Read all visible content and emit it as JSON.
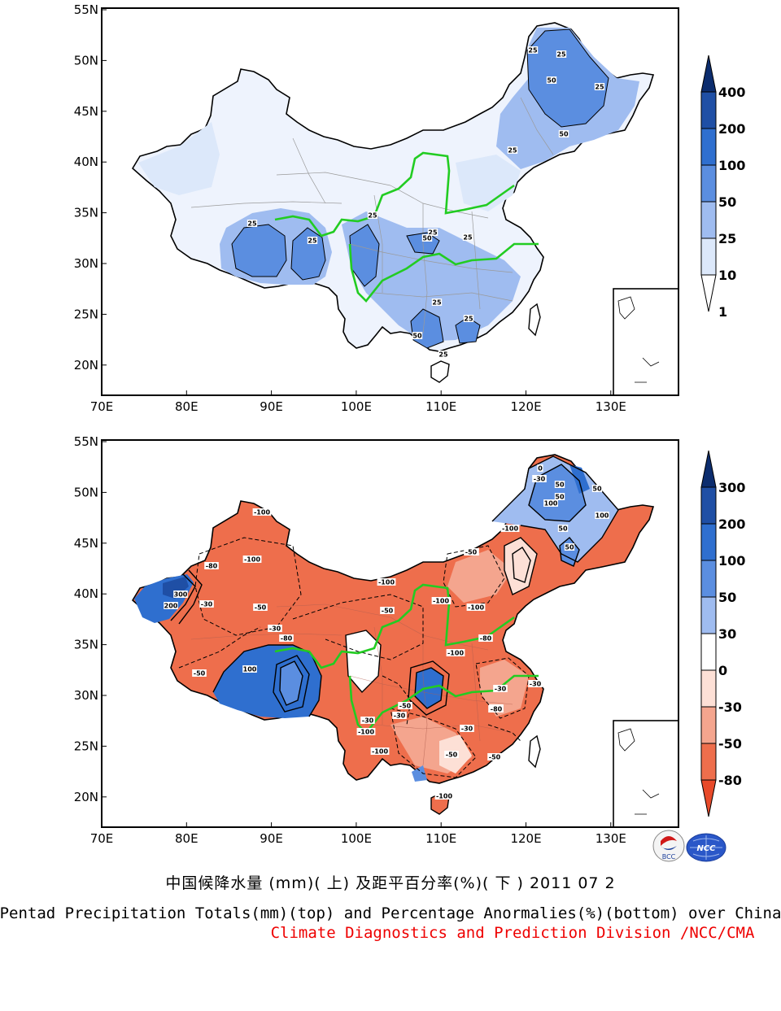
{
  "maps": [
    {
      "id": "top",
      "title": "Pentad precipitation totals (mm)",
      "lon_ticks": [
        "70E",
        "80E",
        "90E",
        "100E",
        "110E",
        "120E",
        "130E"
      ],
      "lat_ticks": [
        "55N",
        "50N",
        "45N",
        "40N",
        "35N",
        "30N",
        "25N",
        "20N"
      ],
      "colorbar_labels": [
        "400",
        "200",
        "100",
        "50",
        "25",
        "10",
        "1"
      ],
      "colorbar_colors": [
        "#0c2d6e",
        "#1f4fa5",
        "#2f6fcf",
        "#5b8ee0",
        "#9fbcf0",
        "#dce8fa",
        "#ffffff"
      ],
      "contour_labels": [
        "25",
        "25",
        "50",
        "25",
        "50",
        "25",
        "25",
        "25",
        "25",
        "25",
        "50",
        "25",
        "25",
        "25",
        "50",
        "25"
      ]
    },
    {
      "id": "bottom",
      "title": "Percentage anomalies (%)",
      "lon_ticks": [
        "70E",
        "80E",
        "90E",
        "100E",
        "110E",
        "120E",
        "130E"
      ],
      "lat_ticks": [
        "55N",
        "50N",
        "45N",
        "40N",
        "35N",
        "30N",
        "25N",
        "20N"
      ],
      "colorbar_labels": [
        "300",
        "200",
        "100",
        "50",
        "30",
        "0",
        "-30",
        "-50",
        "-80"
      ],
      "colorbar_colors": [
        "#0c2d6e",
        "#1f4fa5",
        "#2f6fcf",
        "#5b8ee0",
        "#9fbcf0",
        "#ffffff",
        "#fde0d6",
        "#f4a58e",
        "#ee6e4c",
        "#e84a2a"
      ],
      "contour_labels": [
        "-100",
        "-100",
        "-100",
        "-80",
        "300",
        "200",
        "-30",
        "-50",
        "-100",
        "-50",
        "100",
        "-30",
        "-50",
        "-80",
        "-50",
        "-100",
        "-100",
        "-100",
        "-50",
        "-30",
        "-100",
        "-50",
        "0",
        "-30",
        "50",
        "100",
        "50",
        "-100",
        "-50",
        "-30",
        "-50",
        "-80",
        "-50",
        "-30",
        "-100",
        "-50",
        "-30",
        "-80",
        "-80",
        "50",
        "100",
        "50",
        "50",
        "100",
        "-100",
        "-30"
      ]
    }
  ],
  "captions": {
    "chinese": "中国候降水量 (mm)( 上) 及距平百分率(%)( 下 ) 2011 07 2",
    "english": "Pentad Precipitation Totals(mm)(top) and Percentage Anormalies(%)(bottom) over China",
    "division": "Climate Diagnostics and Prediction Division /NCC/CMA"
  },
  "logos": [
    {
      "name": "bcc-logo",
      "text": "BCC"
    },
    {
      "name": "ncc-logo",
      "text": "NCC"
    }
  ]
}
